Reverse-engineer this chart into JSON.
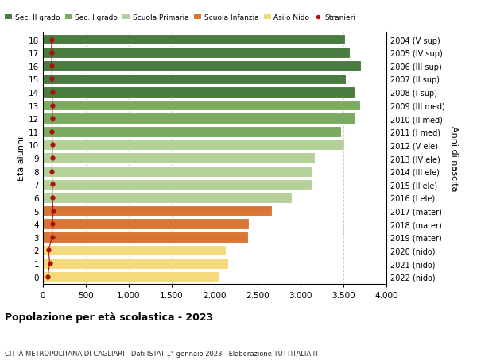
{
  "ages": [
    18,
    17,
    16,
    15,
    14,
    13,
    12,
    11,
    10,
    9,
    8,
    7,
    6,
    5,
    4,
    3,
    2,
    1,
    0
  ],
  "years_labels": [
    "2004 (V sup)",
    "2005 (IV sup)",
    "2006 (III sup)",
    "2007 (II sup)",
    "2008 (I sup)",
    "2009 (III med)",
    "2010 (II med)",
    "2011 (I med)",
    "2012 (V ele)",
    "2013 (IV ele)",
    "2014 (III ele)",
    "2015 (II ele)",
    "2016 (I ele)",
    "2017 (mater)",
    "2018 (mater)",
    "2019 (mater)",
    "2020 (nido)",
    "2021 (nido)",
    "2022 (nido)"
  ],
  "bar_values": [
    3520,
    3570,
    3700,
    3530,
    3640,
    3690,
    3640,
    3470,
    3510,
    3170,
    3130,
    3130,
    2900,
    2670,
    2400,
    2390,
    2130,
    2160,
    2050
  ],
  "stranieri_values": [
    100,
    100,
    105,
    105,
    108,
    110,
    110,
    105,
    110,
    108,
    105,
    110,
    108,
    120,
    108,
    108,
    65,
    80,
    55
  ],
  "bar_colors": [
    "#4a7c3f",
    "#4a7c3f",
    "#4a7c3f",
    "#4a7c3f",
    "#4a7c3f",
    "#7aab5e",
    "#7aab5e",
    "#7aab5e",
    "#b5d19a",
    "#b5d19a",
    "#b5d19a",
    "#b5d19a",
    "#b5d19a",
    "#d97535",
    "#d97535",
    "#d97535",
    "#f5d97a",
    "#f5d97a",
    "#f5d97a"
  ],
  "color_sec2": "#4a7c3f",
  "color_sec1": "#7aab5e",
  "color_prim": "#b5d19a",
  "color_inf": "#d97535",
  "color_nido": "#f5d97a",
  "color_stranieri": "#aa1111",
  "title": "Popolazione per età scolastica - 2023",
  "subtitle": "CITTÀ METROPOLITANA DI CAGLIARI - Dati ISTAT 1° gennaio 2023 - Elaborazione TUTTITALIA.IT",
  "ylabel": "Età alunni",
  "right_label": "Anni di nascita",
  "xlim": [
    0,
    4000
  ],
  "xticks": [
    0,
    500,
    1000,
    1500,
    2000,
    2500,
    3000,
    3500,
    4000
  ],
  "background_color": "#ffffff",
  "grid_color": "#cccccc",
  "bar_height": 0.82
}
